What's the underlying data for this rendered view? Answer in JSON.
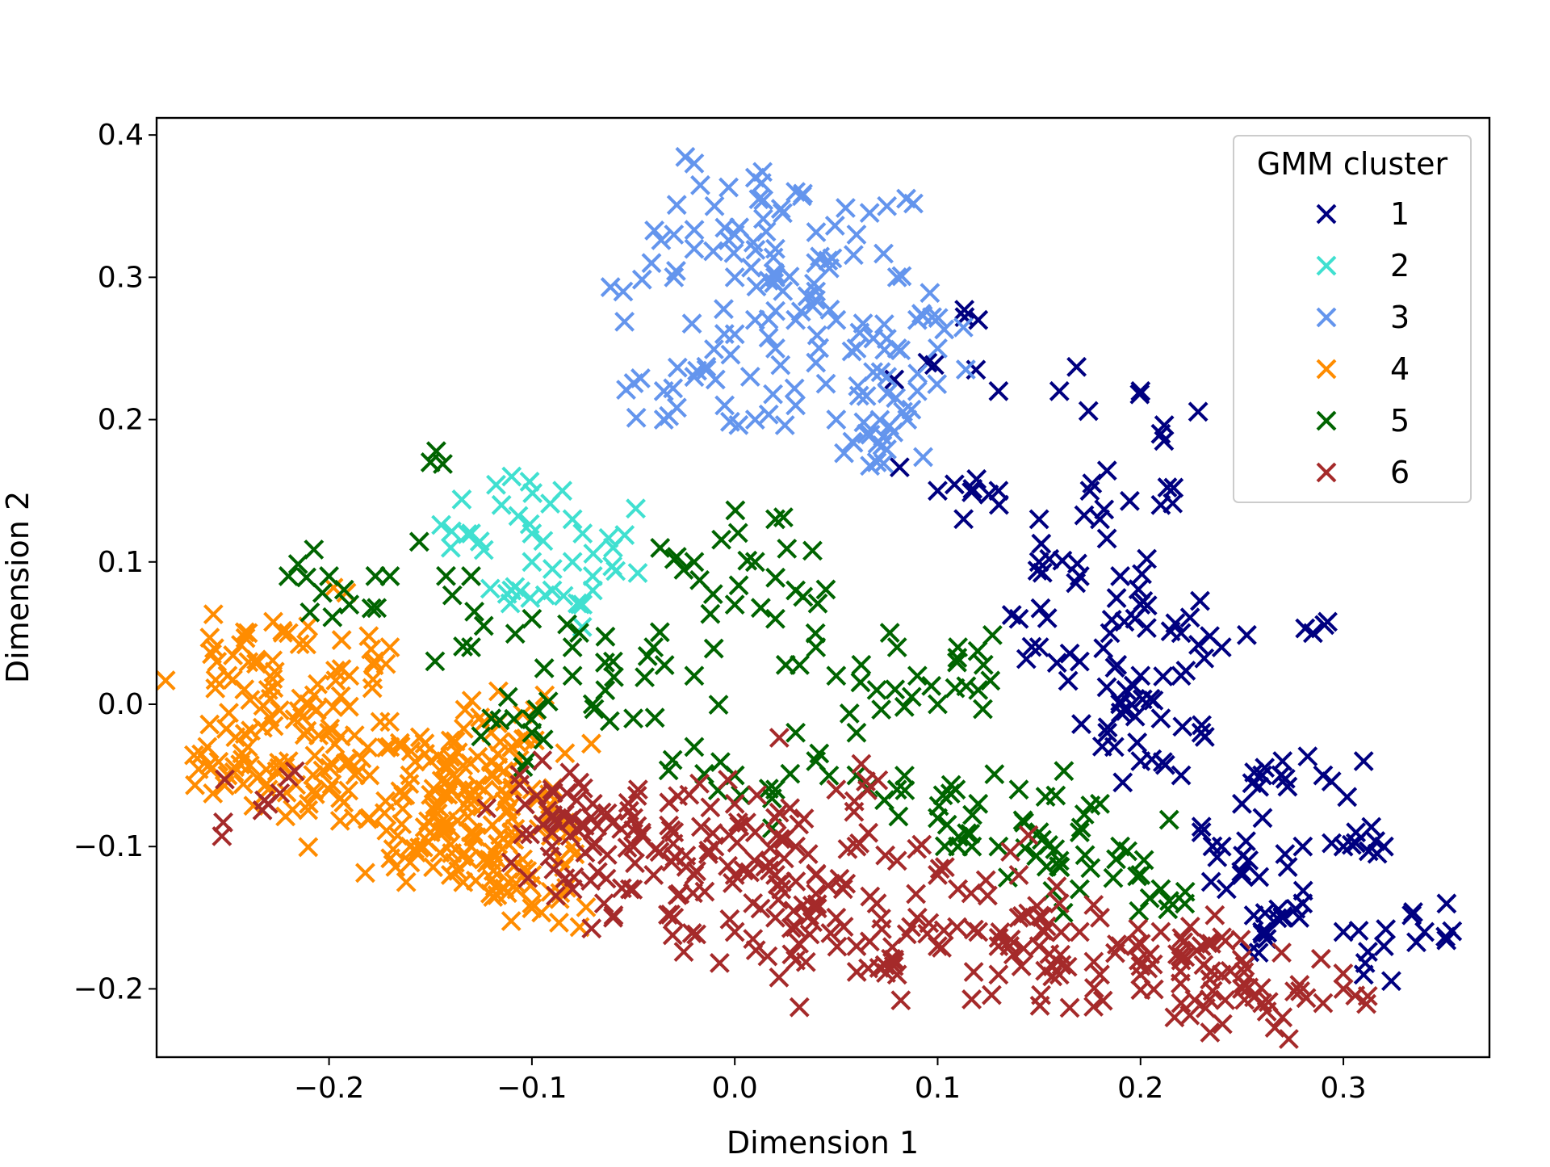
{
  "chart_data": {
    "type": "scatter",
    "title": "",
    "xlabel": "Dimension 1",
    "ylabel": "Dimension 2",
    "xlim": [
      -0.285,
      0.372
    ],
    "ylim": [
      -0.248,
      0.412
    ],
    "xticks": [
      -0.2,
      -0.1,
      0.0,
      0.1,
      0.2,
      0.3
    ],
    "yticks": [
      -0.2,
      -0.1,
      0.0,
      0.1,
      0.2,
      0.3,
      0.4
    ],
    "xtick_labels": [
      "−0.2",
      "−0.1",
      "0.0",
      "0.1",
      "0.2",
      "0.3"
    ],
    "ytick_labels": [
      "−0.2",
      "−0.1",
      "0.0",
      "0.1",
      "0.2",
      "0.3",
      "0.4"
    ],
    "marker": "x",
    "grid": false,
    "legend": {
      "title": "GMM cluster",
      "position": "top-right"
    },
    "series": [
      {
        "name": "1",
        "color": "#000080",
        "generator": {
          "seed": 11,
          "n": 150,
          "spread": 0.6
        },
        "anchors": [
          [
            0.12,
            0.27
          ],
          [
            0.095,
            0.24
          ],
          [
            0.13,
            0.22
          ],
          [
            0.16,
            0.22
          ],
          [
            0.2,
            0.22
          ],
          [
            0.21,
            0.19
          ],
          [
            0.1,
            0.15
          ],
          [
            0.13,
            0.15
          ],
          [
            0.15,
            0.13
          ],
          [
            0.175,
            0.15
          ],
          [
            0.18,
            0.13
          ],
          [
            0.21,
            0.14
          ],
          [
            0.15,
            0.1
          ],
          [
            0.17,
            0.09
          ],
          [
            0.19,
            0.09
          ],
          [
            0.14,
            0.06
          ],
          [
            0.15,
            0.04
          ],
          [
            0.17,
            0.03
          ],
          [
            0.2,
            0.07
          ],
          [
            0.185,
            0.05
          ],
          [
            0.22,
            0.05
          ],
          [
            0.2,
            0.02
          ],
          [
            0.22,
            0.02
          ],
          [
            0.24,
            0.04
          ],
          [
            0.19,
            0.0
          ],
          [
            0.21,
            -0.01
          ],
          [
            0.23,
            -0.02
          ],
          [
            0.2,
            -0.04
          ],
          [
            0.22,
            -0.05
          ],
          [
            0.25,
            -0.07
          ],
          [
            0.26,
            -0.05
          ],
          [
            0.27,
            -0.04
          ],
          [
            0.23,
            -0.09
          ],
          [
            0.24,
            -0.1
          ],
          [
            0.25,
            -0.12
          ],
          [
            0.28,
            -0.1
          ],
          [
            0.3,
            -0.1
          ],
          [
            0.32,
            -0.1
          ],
          [
            0.29,
            -0.05
          ],
          [
            0.31,
            -0.04
          ],
          [
            0.28,
            -0.14
          ],
          [
            0.3,
            -0.16
          ],
          [
            0.32,
            -0.17
          ],
          [
            0.34,
            -0.16
          ],
          [
            0.285,
            0.05
          ],
          [
            0.26,
            -0.16
          ],
          [
            0.31,
            -0.19
          ],
          [
            0.27,
            -0.15
          ]
        ]
      },
      {
        "name": "2",
        "color": "#40E0D0",
        "generator": {
          "seed": 23,
          "n": 32,
          "spread": 0.7
        },
        "anchors": [
          [
            -0.11,
            0.16
          ],
          [
            -0.13,
            0.12
          ],
          [
            -0.115,
            0.14
          ],
          [
            -0.1,
            0.12
          ],
          [
            -0.1,
            0.1
          ],
          [
            -0.085,
            0.15
          ],
          [
            -0.08,
            0.13
          ],
          [
            -0.075,
            0.12
          ],
          [
            -0.08,
            0.1
          ],
          [
            -0.07,
            0.09
          ],
          [
            -0.06,
            0.11
          ],
          [
            -0.09,
            0.08
          ],
          [
            -0.07,
            0.08
          ],
          [
            -0.11,
            0.08
          ],
          [
            -0.14,
            0.11
          ],
          [
            -0.075,
            0.07
          ]
        ]
      },
      {
        "name": "3",
        "color": "#6495ED",
        "generator": {
          "seed": 37,
          "n": 130,
          "spread": 0.65
        },
        "anchors": [
          [
            -0.03,
            0.33
          ],
          [
            -0.02,
            0.38
          ],
          [
            -0.01,
            0.35
          ],
          [
            0.01,
            0.37
          ],
          [
            0.03,
            0.36
          ],
          [
            -0.02,
            0.32
          ],
          [
            0.0,
            0.33
          ],
          [
            0.02,
            0.32
          ],
          [
            0.04,
            0.31
          ],
          [
            0.06,
            0.33
          ],
          [
            0.075,
            0.35
          ],
          [
            -0.03,
            0.3
          ],
          [
            0.0,
            0.3
          ],
          [
            0.02,
            0.3
          ],
          [
            0.04,
            0.29
          ],
          [
            0.08,
            0.3
          ],
          [
            0.01,
            0.27
          ],
          [
            0.03,
            0.27
          ],
          [
            0.05,
            0.27
          ],
          [
            0.0,
            0.26
          ],
          [
            0.02,
            0.25
          ],
          [
            0.06,
            0.25
          ],
          [
            0.04,
            0.24
          ],
          [
            0.08,
            0.25
          ],
          [
            0.09,
            0.27
          ],
          [
            0.1,
            0.25
          ],
          [
            -0.035,
            0.22
          ],
          [
            -0.02,
            0.23
          ],
          [
            -0.005,
            0.21
          ],
          [
            0.01,
            0.2
          ],
          [
            0.03,
            0.21
          ],
          [
            0.05,
            0.2
          ],
          [
            0.065,
            0.19
          ],
          [
            0.07,
            0.17
          ],
          [
            0.085,
            0.2
          ],
          [
            0.09,
            0.22
          ],
          [
            0.075,
            0.23
          ],
          [
            -0.055,
            0.29
          ],
          [
            -0.035,
            0.2
          ]
        ]
      },
      {
        "name": "4",
        "color": "#FF8C00",
        "generator": {
          "seed": 41,
          "n": 300,
          "spread": 0.9
        },
        "anchors": [
          [
            -0.24,
            0.05
          ],
          [
            -0.22,
            0.05
          ],
          [
            -0.25,
            0.02
          ],
          [
            -0.23,
            0.01
          ],
          [
            -0.21,
            0.0
          ],
          [
            -0.19,
            0.02
          ],
          [
            -0.17,
            0.04
          ],
          [
            -0.2,
            -0.02
          ],
          [
            -0.19,
            -0.04
          ],
          [
            -0.18,
            -0.05
          ],
          [
            -0.17,
            -0.03
          ],
          [
            -0.16,
            -0.05
          ],
          [
            -0.15,
            -0.04
          ],
          [
            -0.14,
            -0.06
          ],
          [
            -0.13,
            -0.07
          ],
          [
            -0.12,
            -0.05
          ],
          [
            -0.11,
            -0.08
          ],
          [
            -0.1,
            -0.06
          ],
          [
            -0.11,
            -0.03
          ],
          [
            -0.12,
            -0.02
          ],
          [
            -0.13,
            -0.09
          ],
          [
            -0.15,
            -0.09
          ],
          [
            -0.16,
            -0.1
          ],
          [
            -0.18,
            -0.08
          ],
          [
            -0.2,
            -0.06
          ],
          [
            -0.22,
            -0.04
          ],
          [
            -0.24,
            -0.03
          ],
          [
            -0.26,
            -0.03
          ],
          [
            -0.25,
            -0.05
          ],
          [
            -0.23,
            -0.06
          ],
          [
            -0.21,
            -0.07
          ],
          [
            -0.12,
            -0.11
          ],
          [
            -0.14,
            -0.12
          ],
          [
            -0.1,
            -0.12
          ],
          [
            -0.1,
            -0.14
          ],
          [
            -0.11,
            -0.09
          ],
          [
            -0.13,
            -0.1
          ]
        ]
      },
      {
        "name": "5",
        "color": "#006400",
        "generator": {
          "seed": 53,
          "n": 150,
          "spread": 0.85
        },
        "anchors": [
          [
            -0.15,
            0.17
          ],
          [
            -0.22,
            0.09
          ],
          [
            -0.2,
            0.09
          ],
          [
            -0.17,
            0.09
          ],
          [
            -0.19,
            0.07
          ],
          [
            -0.13,
            0.09
          ],
          [
            -0.1,
            0.06
          ],
          [
            -0.08,
            0.04
          ],
          [
            -0.06,
            0.03
          ],
          [
            -0.04,
            0.04
          ],
          [
            -0.02,
            0.02
          ],
          [
            -0.02,
            0.1
          ],
          [
            0.01,
            0.1
          ],
          [
            0.02,
            0.13
          ],
          [
            0.03,
            0.08
          ],
          [
            0.0,
            0.07
          ],
          [
            0.02,
            0.06
          ],
          [
            0.04,
            0.04
          ],
          [
            0.05,
            0.02
          ],
          [
            0.07,
            0.01
          ],
          [
            0.09,
            0.02
          ],
          [
            0.1,
            0.0
          ],
          [
            0.08,
            0.04
          ],
          [
            0.11,
            0.04
          ],
          [
            0.12,
            0.01
          ],
          [
            -0.07,
            0.0
          ],
          [
            -0.05,
            -0.01
          ],
          [
            -0.1,
            -0.02
          ],
          [
            -0.13,
            0.04
          ],
          [
            -0.12,
            -0.01
          ],
          [
            -0.02,
            -0.03
          ],
          [
            0.0,
            -0.05
          ],
          [
            0.02,
            -0.06
          ],
          [
            0.04,
            -0.04
          ],
          [
            0.06,
            -0.05
          ],
          [
            0.08,
            -0.06
          ],
          [
            0.1,
            -0.08
          ],
          [
            0.12,
            -0.07
          ],
          [
            0.14,
            -0.06
          ],
          [
            0.15,
            -0.09
          ],
          [
            0.13,
            -0.1
          ],
          [
            0.11,
            -0.1
          ],
          [
            0.17,
            -0.09
          ],
          [
            0.18,
            -0.07
          ],
          [
            0.19,
            -0.1
          ],
          [
            0.2,
            -0.12
          ],
          [
            0.21,
            -0.13
          ],
          [
            0.16,
            -0.11
          ],
          [
            0.17,
            -0.13
          ],
          [
            0.03,
            -0.02
          ],
          [
            0.06,
            -0.02
          ],
          [
            -0.08,
            0.02
          ]
        ]
      },
      {
        "name": "6",
        "color": "#A52A2A",
        "generator": {
          "seed": 67,
          "n": 300,
          "spread": 0.85
        },
        "anchors": [
          [
            -0.23,
            -0.07
          ],
          [
            -0.09,
            -0.06
          ],
          [
            -0.08,
            -0.08
          ],
          [
            -0.07,
            -0.07
          ],
          [
            -0.05,
            -0.08
          ],
          [
            -0.09,
            -0.1
          ],
          [
            -0.07,
            -0.1
          ],
          [
            -0.05,
            -0.1
          ],
          [
            -0.03,
            -0.09
          ],
          [
            -0.01,
            -0.1
          ],
          [
            0.01,
            -0.09
          ],
          [
            0.0,
            -0.07
          ],
          [
            0.02,
            -0.08
          ],
          [
            0.03,
            -0.1
          ],
          [
            -0.04,
            -0.12
          ],
          [
            -0.02,
            -0.12
          ],
          [
            0.0,
            -0.12
          ],
          [
            0.02,
            -0.12
          ],
          [
            0.04,
            -0.12
          ],
          [
            0.06,
            -0.1
          ],
          [
            -0.08,
            -0.13
          ],
          [
            -0.06,
            -0.15
          ],
          [
            -0.03,
            -0.15
          ],
          [
            0.0,
            -0.16
          ],
          [
            0.02,
            -0.15
          ],
          [
            0.05,
            -0.15
          ],
          [
            0.07,
            -0.14
          ],
          [
            0.08,
            -0.11
          ],
          [
            0.09,
            -0.15
          ],
          [
            0.11,
            -0.13
          ],
          [
            0.12,
            -0.16
          ],
          [
            0.13,
            -0.17
          ],
          [
            0.14,
            -0.15
          ],
          [
            0.15,
            -0.17
          ],
          [
            0.16,
            -0.14
          ],
          [
            0.17,
            -0.16
          ],
          [
            0.18,
            -0.15
          ],
          [
            0.19,
            -0.17
          ],
          [
            0.21,
            -0.16
          ],
          [
            0.22,
            -0.18
          ],
          [
            0.23,
            -0.17
          ],
          [
            0.24,
            -0.19
          ],
          [
            0.25,
            -0.2
          ],
          [
            0.26,
            -0.21
          ],
          [
            0.27,
            -0.22
          ],
          [
            0.29,
            -0.21
          ],
          [
            0.3,
            -0.2
          ],
          [
            0.22,
            -0.21
          ],
          [
            0.2,
            -0.19
          ],
          [
            0.1,
            -0.17
          ],
          [
            0.06,
            -0.17
          ],
          [
            0.03,
            -0.18
          ],
          [
            0.08,
            -0.19
          ],
          [
            0.13,
            -0.19
          ],
          [
            0.16,
            -0.19
          ],
          [
            0.18,
            -0.19
          ],
          [
            -0.09,
            -0.09
          ],
          [
            0.05,
            -0.06
          ],
          [
            0.1,
            -0.12
          ],
          [
            0.14,
            -0.12
          ]
        ]
      }
    ]
  }
}
